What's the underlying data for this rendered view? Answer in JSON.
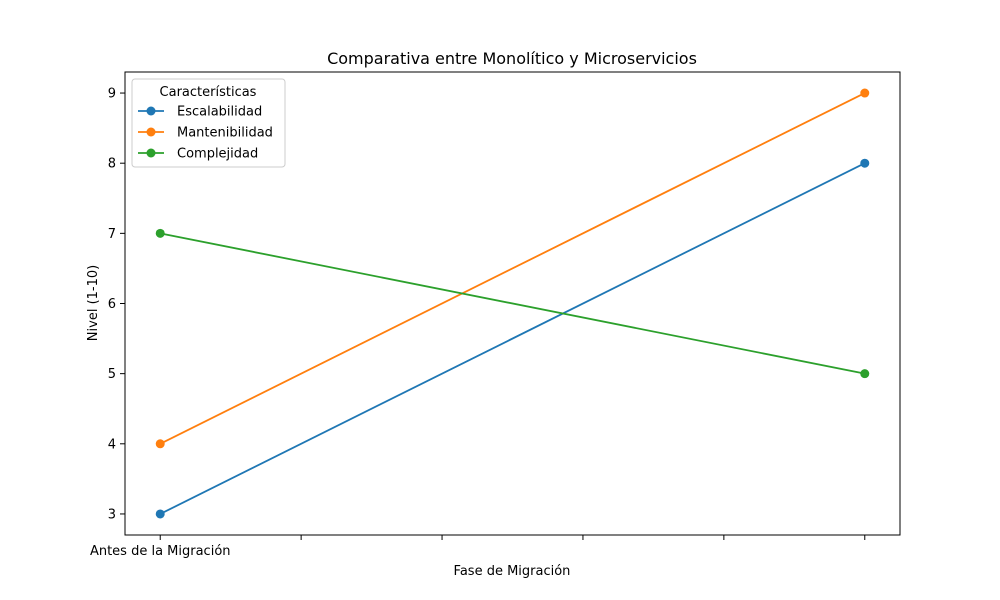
{
  "chart_data": {
    "type": "line",
    "title": "Comparativa entre Monolítico y Microservicios",
    "xlabel": "Fase de Migración",
    "ylabel": "Nivel (1-10)",
    "x": [
      0,
      1
    ],
    "xlim": [
      -0.05,
      1.05
    ],
    "x_ticks": [
      0,
      0.2,
      0.4,
      0.6,
      0.8,
      1.0
    ],
    "x_tick_labels": [
      "Antes de la Migración",
      "",
      "",
      "",
      "",
      ""
    ],
    "ylim": [
      2.7,
      9.3
    ],
    "y_ticks": [
      3,
      4,
      5,
      6,
      7,
      8,
      9
    ],
    "grid": false,
    "legend": {
      "title": "Características",
      "placement": "top-left"
    },
    "series": [
      {
        "name": "Escalabilidad",
        "values": [
          3,
          8
        ],
        "color": "#1f77b4"
      },
      {
        "name": "Mantenibilidad",
        "values": [
          4,
          9
        ],
        "color": "#ff7f0e"
      },
      {
        "name": "Complejidad",
        "values": [
          7,
          5
        ],
        "color": "#2ca02c"
      }
    ]
  }
}
